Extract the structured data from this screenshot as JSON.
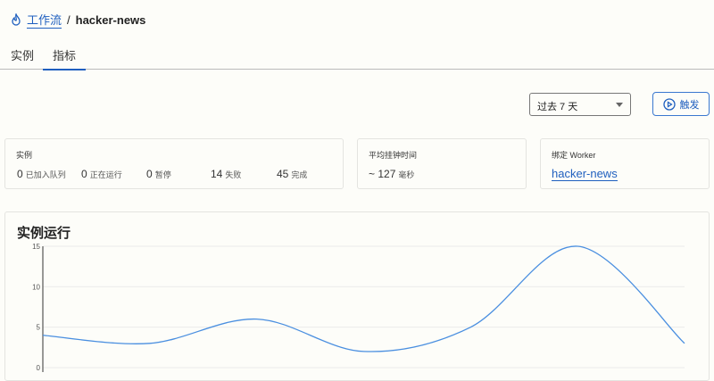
{
  "breadcrumb": {
    "icon": "workflow-flame-icon",
    "parent": "工作流",
    "separator": "/",
    "current": "hacker-news"
  },
  "tabs": [
    {
      "label": "实例",
      "active": false
    },
    {
      "label": "指标",
      "active": true
    }
  ],
  "range_select": {
    "value": "过去 7 天"
  },
  "trigger_button": {
    "label": "触发",
    "icon": "play-circle-icon"
  },
  "instances_card": {
    "title": "实例",
    "stats": [
      {
        "value": "0",
        "label": "已加入队列"
      },
      {
        "value": "0",
        "label": "正在运行"
      },
      {
        "value": "0",
        "label": "暂停"
      },
      {
        "value": "14",
        "label": "失败"
      },
      {
        "value": "45",
        "label": "完成"
      }
    ]
  },
  "wall_time_card": {
    "title": "平均挂钟时间",
    "value": "~ 127",
    "unit": "毫秒"
  },
  "worker_card": {
    "title": "绑定 Worker",
    "link": "hacker-news"
  },
  "accent_color": "#1f5fbf",
  "chart_data": {
    "type": "line",
    "title": "实例运行",
    "y_ticks": [
      "0",
      "5",
      "10",
      "15"
    ],
    "ylim": [
      0,
      15
    ],
    "grid": true,
    "x": [
      1,
      2,
      3,
      4,
      5,
      6,
      7
    ],
    "values": [
      4,
      3,
      6,
      2,
      5,
      15,
      3
    ],
    "line_color": "#4a8fe0"
  }
}
